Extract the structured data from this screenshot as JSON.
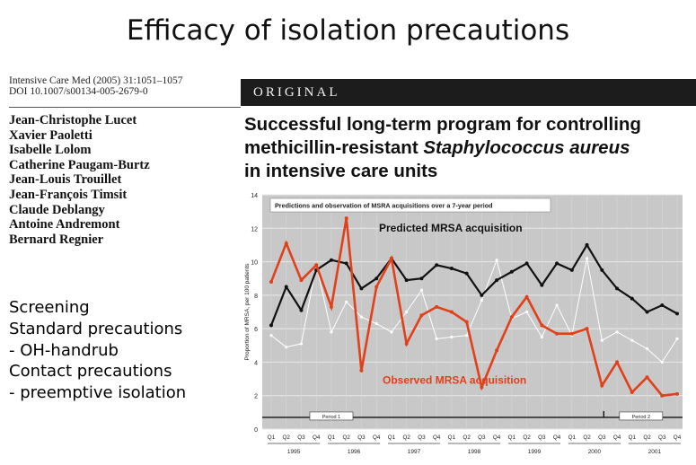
{
  "slide": {
    "title": "Efficacy of isolation precautions"
  },
  "journal": {
    "citation": "Intensive Care Med (2005) 31:1051–1057",
    "doi": "DOI 10.1007/s00134-005-2679-0",
    "section": "ORIGINAL"
  },
  "authors": [
    "Jean-Christophe Lucet",
    "Xavier Paoletti",
    "Isabelle Lolom",
    "Catherine Paugam-Burtz",
    "Jean-Louis Trouillet",
    "Jean-François Timsit",
    "Claude Deblangy",
    "Antoine Andremont",
    "Bernard Regnier"
  ],
  "paper_title": {
    "line1": "Successful long-term program for controlling",
    "line2_plain": "methicillin-resistant ",
    "line2_italic": "Staphylococcus aureus",
    "line3": "in intensive care units"
  },
  "bullets": [
    "Screening",
    "Standard precautions",
    "- OH-handrub",
    "Contact precautions",
    "- preemptive isolation"
  ],
  "colors": {
    "predicted": "#111111",
    "observed": "#e0401a",
    "third": "#ffffff",
    "plot_bg": "#c8c8c8"
  },
  "chart_data": {
    "type": "line",
    "title": "Predictions and observation of MSRA acquisitions over a 7-year period",
    "ylabel": "Proportion of MRSA, per 100 patients",
    "ylim": [
      0,
      14
    ],
    "yticks": [
      0,
      2,
      4,
      6,
      8,
      10,
      12,
      14
    ],
    "grid": true,
    "quarters": [
      "Q1",
      "Q2",
      "Q3",
      "Q4",
      "Q1",
      "Q2",
      "Q3",
      "Q4",
      "Q1",
      "Q2",
      "Q3",
      "Q4",
      "Q1",
      "Q2",
      "Q3",
      "Q4",
      "Q1",
      "Q2",
      "Q3",
      "Q4",
      "Q1",
      "Q2",
      "Q3",
      "Q4",
      "Q1",
      "Q2",
      "Q3",
      "Q4"
    ],
    "years": [
      "1995",
      "1996",
      "1997",
      "1998",
      "1999",
      "2000",
      "2001"
    ],
    "series": [
      {
        "name": "Predicted MRSA acquisition",
        "color": "#111111",
        "values": [
          6.2,
          8.5,
          7.1,
          9.5,
          10.1,
          9.9,
          8.4,
          9.0,
          10.2,
          8.9,
          9.0,
          9.8,
          9.6,
          9.3,
          8.0,
          8.9,
          9.4,
          9.9,
          8.6,
          9.9,
          9.5,
          11.0,
          9.5,
          8.4,
          7.8,
          7.0,
          7.4,
          6.9
        ]
      },
      {
        "name": "Observed MRSA acquisition",
        "color": "#e0401a",
        "values": [
          8.8,
          11.1,
          8.9,
          9.8,
          7.3,
          12.6,
          3.5,
          8.5,
          10.2,
          5.1,
          6.8,
          7.3,
          7.0,
          6.4,
          2.5,
          4.7,
          6.7,
          7.9,
          6.2,
          5.7,
          5.7,
          6.0,
          2.6,
          4.0,
          2.2,
          3.1,
          2.0,
          2.1
        ]
      },
      {
        "color": "#ffffff",
        "values": [
          5.6,
          4.9,
          5.1,
          9.8,
          5.8,
          7.6,
          6.7,
          6.3,
          5.8,
          7.0,
          8.3,
          5.4,
          5.5,
          5.6,
          7.7,
          10.1,
          6.6,
          7.0,
          5.5,
          7.4,
          5.6,
          10.2,
          5.3,
          5.8,
          5.3,
          4.8,
          4.0,
          5.4
        ]
      }
    ],
    "annotations": [
      {
        "text": "Predicted MRSA acquisition",
        "color": "#111111"
      },
      {
        "text": "Observed MRSA acquisition",
        "color": "#e0401a"
      }
    ],
    "periods": [
      {
        "label": "Period 1",
        "start_quarter": 1,
        "end_quarter": 22
      },
      {
        "label": "Period 2",
        "start_quarter": 24,
        "end_quarter": 28
      }
    ]
  }
}
